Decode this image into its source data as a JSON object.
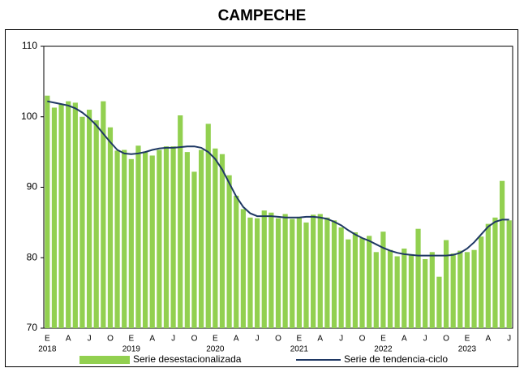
{
  "chart_data": {
    "type": "bar",
    "title": "CAMPECHE",
    "categories": [
      "E",
      null,
      null,
      "A",
      null,
      null,
      "J",
      null,
      null,
      "O",
      null,
      null,
      "E",
      null,
      null,
      "A",
      null,
      null,
      "J",
      null,
      null,
      "O",
      null,
      null,
      "E",
      null,
      null,
      "A",
      null,
      null,
      "J",
      null,
      null,
      "O",
      null,
      null,
      "E",
      null,
      null,
      "A",
      null,
      null,
      "J",
      null,
      null,
      "O",
      null,
      null,
      "E",
      null,
      null,
      "A",
      null,
      null,
      "J",
      null,
      null,
      "O",
      null,
      null,
      "E",
      null,
      null,
      "A",
      null,
      null,
      "J"
    ],
    "years": [
      "2018",
      null,
      null,
      null,
      null,
      null,
      null,
      null,
      null,
      null,
      null,
      null,
      "2019",
      null,
      null,
      null,
      null,
      null,
      null,
      null,
      null,
      null,
      null,
      null,
      "2020",
      null,
      null,
      null,
      null,
      null,
      null,
      null,
      null,
      null,
      null,
      null,
      "2021",
      null,
      null,
      null,
      null,
      null,
      null,
      null,
      null,
      null,
      null,
      null,
      "2022",
      null,
      null,
      null,
      null,
      null,
      null,
      null,
      null,
      null,
      null,
      null,
      "2023",
      null,
      null,
      null,
      null,
      null,
      null
    ],
    "series": [
      {
        "name": "Serie desestacionalizada",
        "type": "bar",
        "color": "#92d050",
        "values": [
          103,
          101.3,
          101.8,
          102.2,
          102,
          100,
          101,
          99.5,
          102.2,
          98.5,
          95.2,
          95.3,
          94,
          95.9,
          95,
          94.5,
          95.3,
          95.8,
          95.8,
          100.2,
          95,
          92.2,
          95.3,
          99,
          95.5,
          94.7,
          91.7,
          88.8,
          86.9,
          85.7,
          85.6,
          86.7,
          86.4,
          85.6,
          86.2,
          85.5,
          85.8,
          85,
          86.1,
          86.2,
          85.7,
          85.3,
          84.3,
          82.6,
          83.6,
          82.8,
          83.1,
          80.8,
          83.7,
          81.1,
          80.2,
          81.3,
          80.5,
          84.1,
          79.8,
          80.8,
          77.3,
          82.5,
          80.6,
          81,
          80.8,
          81.1,
          83,
          84.8,
          85.7,
          90.9,
          85.3
        ]
      },
      {
        "name": "Serie de tendencia-ciclo",
        "type": "line",
        "color": "#1f3864",
        "values": [
          102.2,
          102,
          101.8,
          101.6,
          101.2,
          100.6,
          99.8,
          98.8,
          97.6,
          96.4,
          95.3,
          94.8,
          94.7,
          94.8,
          95,
          95.3,
          95.5,
          95.6,
          95.6,
          95.7,
          95.8,
          95.8,
          95.6,
          95,
          94,
          92.5,
          90.6,
          88.7,
          87.2,
          86.3,
          85.9,
          85.9,
          85.9,
          85.8,
          85.7,
          85.7,
          85.7,
          85.8,
          85.8,
          85.7,
          85.5,
          85.1,
          84.6,
          83.9,
          83.3,
          82.8,
          82.4,
          81.9,
          81.4,
          81,
          80.7,
          80.5,
          80.4,
          80.3,
          80.3,
          80.3,
          80.3,
          80.3,
          80.4,
          80.7,
          81.3,
          82.2,
          83.3,
          84.4,
          85.1,
          85.4,
          85.4
        ]
      }
    ],
    "ylim": [
      70,
      110
    ],
    "yticks": [
      70,
      80,
      90,
      100,
      110
    ],
    "grid": false
  }
}
